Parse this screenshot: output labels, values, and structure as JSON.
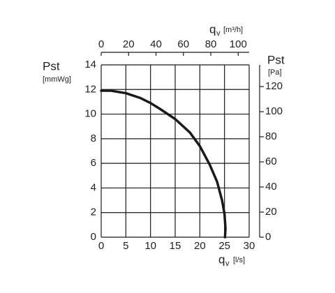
{
  "chart_data": {
    "type": "line",
    "x": [
      0,
      2,
      5,
      8,
      10,
      12,
      15,
      18,
      20,
      22,
      23.5,
      24.5,
      25,
      25.2,
      25.1
    ],
    "values": [
      11.9,
      11.9,
      11.7,
      11.3,
      10.9,
      10.4,
      9.6,
      8.5,
      7.4,
      5.9,
      4.5,
      3.0,
      1.9,
      0.7,
      0
    ],
    "color": "#1a1a1a",
    "xlim": [
      0,
      30
    ],
    "xticks": [
      0,
      5,
      10,
      15,
      20,
      25,
      30
    ],
    "ylim": [
      0,
      14
    ],
    "yticks": [
      0,
      2,
      4,
      6,
      8,
      10,
      12,
      14
    ],
    "x2lim": [
      0,
      108
    ],
    "x2ticks": [
      0,
      20,
      40,
      60,
      80,
      100
    ],
    "y2lim": [
      0,
      137.3
    ],
    "y2ticks": [
      0,
      20,
      40,
      60,
      80,
      100,
      120
    ],
    "grid": true,
    "x_label": {
      "symbol": "q",
      "subscript": "v",
      "unit": "[l/s]"
    },
    "x2_label": {
      "symbol": "q",
      "subscript": "v",
      "unit": "[m³/h]"
    },
    "y_label": {
      "symbol": "Pst",
      "unit": "[mmWg]"
    },
    "y2_label": {
      "symbol": "Pst",
      "unit": "[Pa]"
    }
  }
}
